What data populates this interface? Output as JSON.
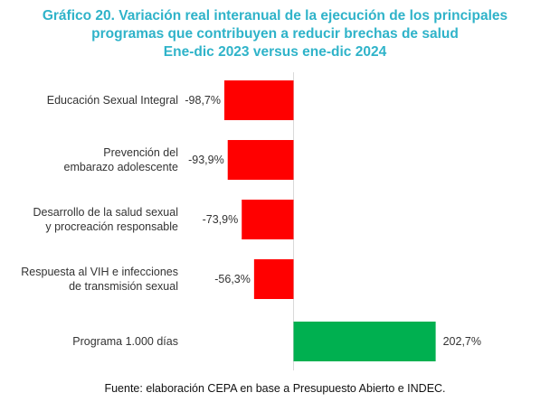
{
  "chart_data": {
    "type": "bar",
    "orientation": "horizontal",
    "title_lines": [
      "Gráfico 20. Variación real interanual de la ejecución de los principales",
      "programas que contribuyen a reducir brechas de salud",
      "Ene-dic 2023 versus ene-dic 2024"
    ],
    "categories": [
      [
        "Educación Sexual Integral"
      ],
      [
        "Prevención del",
        "embarazo adolescente"
      ],
      [
        "Desarrollo de la salud sexual",
        "y procreación responsable"
      ],
      [
        "Respuesta al VIH e infecciones",
        "de transmisión sexual"
      ],
      [
        "Programa 1.000 días"
      ]
    ],
    "values": [
      -98.7,
      -93.9,
      -73.9,
      -56.3,
      202.7
    ],
    "value_labels": [
      "-98,7%",
      "-93,9%",
      "-73,9%",
      "-56,3%",
      "202,7%"
    ],
    "unit": "%",
    "xlim": [
      -98.7,
      202.7
    ],
    "colors": {
      "negative": "#ff0000",
      "positive": "#00b050",
      "title": "#2fb3c9"
    },
    "source": "Fuente: elaboración CEPA en base a Presupuesto Abierto e INDEC."
  }
}
